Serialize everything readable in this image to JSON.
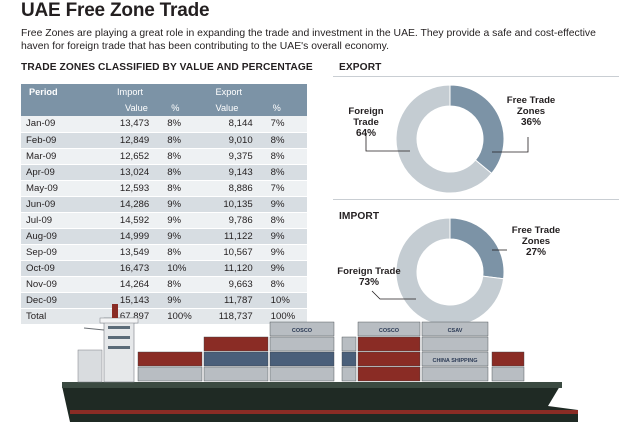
{
  "title": "UAE Free Zone Trade",
  "intro": "Free Zones are playing a great role in expanding the trade and investment in the UAE. They provide a safe and cost-effective haven for foreign trade that has been contributing to the UAE's overall economy.",
  "table_heading": "TRADE ZONES CLASSIFIED BY VALUE AND PERCENTAGE",
  "table": {
    "header_period": "Period",
    "header_import": "Import",
    "header_export": "Export",
    "header_value": "Value",
    "header_pct": "%",
    "rows": [
      [
        "Jan-09",
        "13,473",
        "8%",
        "8,144",
        "7%"
      ],
      [
        "Feb-09",
        "12,849",
        "8%",
        "9,010",
        "8%"
      ],
      [
        "Mar-09",
        "12,652",
        "8%",
        "9,375",
        "8%"
      ],
      [
        "Apr-09",
        "13,024",
        "8%",
        "9,143",
        "8%"
      ],
      [
        "May-09",
        "12,593",
        "8%",
        "8,886",
        "7%"
      ],
      [
        "Jun-09",
        "14,286",
        "9%",
        "10,135",
        "9%"
      ],
      [
        "Jul-09",
        "14,592",
        "9%",
        "9,786",
        "8%"
      ],
      [
        "Aug-09",
        "14,999",
        "9%",
        "11,122",
        "9%"
      ],
      [
        "Sep-09",
        "13,549",
        "8%",
        "10,567",
        "9%"
      ],
      [
        "Oct-09",
        "16,473",
        "10%",
        "11,120",
        "9%"
      ],
      [
        "Nov-09",
        "14,264",
        "8%",
        "9,663",
        "8%"
      ],
      [
        "Dec-09",
        "15,143",
        "9%",
        "11,787",
        "10%"
      ],
      [
        "Total",
        "167,897",
        "100%",
        "118,737",
        "100%"
      ]
    ]
  },
  "export_heading": "EXPORT",
  "import_heading": "IMPORT",
  "chart_data": [
    {
      "type": "table",
      "title": "TRADE ZONES CLASSIFIED BY VALUE AND PERCENTAGE",
      "columns": [
        "Period",
        "Import Value",
        "Import %",
        "Export Value",
        "Export %"
      ],
      "categories": [
        "Jan-09",
        "Feb-09",
        "Mar-09",
        "Apr-09",
        "May-09",
        "Jun-09",
        "Jul-09",
        "Aug-09",
        "Sep-09",
        "Oct-09",
        "Nov-09",
        "Dec-09"
      ],
      "series": [
        {
          "name": "Import",
          "values": [
            13473,
            12849,
            12652,
            13024,
            12593,
            14286,
            14592,
            14999,
            13549,
            16473,
            14264,
            15143
          ]
        },
        {
          "name": "Export",
          "values": [
            8144,
            9010,
            9375,
            9143,
            8886,
            10135,
            9786,
            11122,
            10567,
            11120,
            9663,
            11787
          ]
        }
      ],
      "totals": {
        "Import": 167897,
        "Export": 118737
      }
    },
    {
      "type": "pie",
      "title": "EXPORT",
      "categories": [
        "Foreign Trade",
        "Free Trade Zones"
      ],
      "values": [
        64,
        36
      ],
      "labels": [
        {
          "name": "Foreign Trade",
          "pct": "64%"
        },
        {
          "name": "Free Trade Zones",
          "pct": "36%"
        }
      ],
      "colors": [
        "#c4ccd2",
        "#7c93a6"
      ]
    },
    {
      "type": "pie",
      "title": "IMPORT",
      "categories": [
        "Foreign Trade",
        "Free Trade Zones"
      ],
      "values": [
        73,
        27
      ],
      "labels": [
        {
          "name": "Foreign Trade",
          "pct": "73%"
        },
        {
          "name": "Free Trade Zones",
          "pct": "27%"
        }
      ],
      "colors": [
        "#c4ccd2",
        "#7c93a6"
      ]
    }
  ],
  "ship": {
    "container_labels": [
      "COSCO",
      "COSCO",
      "CHINA SHIPPING",
      "CSAV",
      "COSCO",
      "COSCO",
      "COSCO",
      "COSCO"
    ],
    "colors": {
      "hull": "#1f2a24",
      "deck_red": "#8a2c25",
      "container_blue": "#4a5f7a",
      "container_grey": "#b8bdc2"
    }
  }
}
